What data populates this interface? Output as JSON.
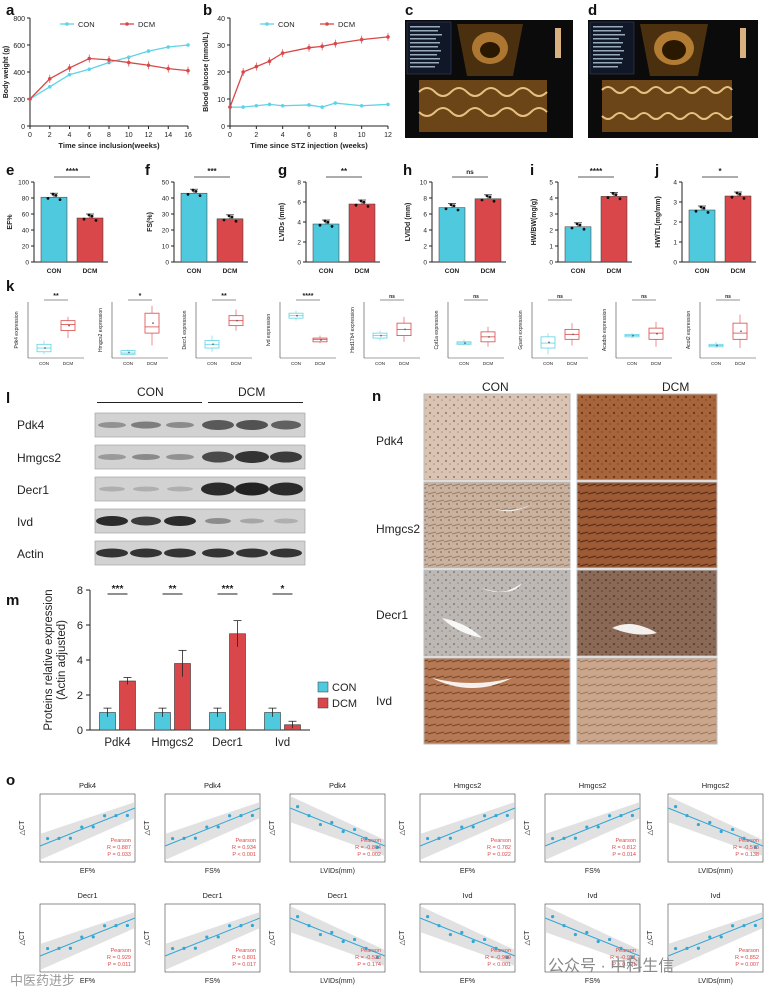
{
  "panel_letters": [
    "a",
    "b",
    "c",
    "d",
    "e",
    "f",
    "g",
    "h",
    "i",
    "j",
    "k",
    "l",
    "m",
    "n",
    "o"
  ],
  "legend": {
    "con": "CON",
    "dcm": "DCM"
  },
  "colors": {
    "con": "#5fd3e6",
    "dcm": "#d94848",
    "con_bar": "#4fc9dd",
    "dcm_bar": "#d9474a",
    "reg": "#33a7d6"
  },
  "chart_data": [
    {
      "id": "a",
      "type": "line",
      "xlabel": "Time since inclusion(weeks)",
      "ylabel": "Body weight  (g)",
      "xlim": [
        0,
        16
      ],
      "ylim": [
        0,
        800
      ],
      "xticks": [
        0,
        2,
        4,
        6,
        8,
        10,
        12,
        14,
        16
      ],
      "yticks": [
        0,
        200,
        400,
        600,
        800
      ],
      "x": [
        0,
        2,
        4,
        6,
        8,
        10,
        12,
        14,
        16
      ],
      "series": [
        {
          "name": "CON",
          "values": [
            200,
            290,
            380,
            420,
            470,
            510,
            555,
            585,
            600
          ]
        },
        {
          "name": "DCM",
          "values": [
            200,
            350,
            430,
            500,
            490,
            470,
            450,
            425,
            410
          ]
        }
      ]
    },
    {
      "id": "b",
      "type": "line",
      "xlabel": "Time since STZ injection  (weeks)",
      "ylabel": "Blood glucose  (mmol/L)",
      "xlim": [
        0,
        12
      ],
      "ylim": [
        0,
        40
      ],
      "xticks": [
        0,
        2,
        4,
        6,
        8,
        10,
        12
      ],
      "yticks": [
        0,
        10,
        20,
        30,
        40
      ],
      "x": [
        0,
        1,
        2,
        3,
        4,
        6,
        7,
        8,
        10,
        12
      ],
      "series": [
        {
          "name": "CON",
          "values": [
            7,
            7,
            7.5,
            8,
            7.5,
            7.8,
            7,
            8.5,
            7.5,
            8
          ]
        },
        {
          "name": "DCM",
          "values": [
            7,
            20,
            22,
            24,
            27,
            29,
            29.5,
            30.5,
            32,
            33
          ]
        }
      ]
    },
    {
      "id": "e",
      "type": "bar",
      "ylabel": "EF%",
      "ylim": [
        0,
        100
      ],
      "yticks": [
        0,
        20,
        40,
        60,
        80,
        100
      ],
      "categories": [
        "CON",
        "DCM"
      ],
      "values": [
        81,
        55
      ],
      "sig": "****"
    },
    {
      "id": "f",
      "type": "bar",
      "ylabel": "FS(%)",
      "ylim": [
        0,
        50
      ],
      "yticks": [
        0,
        10,
        20,
        30,
        40,
        50
      ],
      "categories": [
        "CON",
        "DCM"
      ],
      "values": [
        43,
        27
      ],
      "sig": "***"
    },
    {
      "id": "g",
      "type": "bar",
      "ylabel": "LVIDs  (mm)",
      "ylim": [
        0,
        8
      ],
      "yticks": [
        0,
        2,
        4,
        6,
        8
      ],
      "categories": [
        "CON",
        "DCM"
      ],
      "values": [
        3.8,
        5.8
      ],
      "sig": "**"
    },
    {
      "id": "h",
      "type": "bar",
      "ylabel": "LVIDd  (mm)",
      "ylim": [
        0,
        10
      ],
      "yticks": [
        0,
        2,
        4,
        6,
        8,
        10
      ],
      "categories": [
        "CON",
        "DCM"
      ],
      "values": [
        6.8,
        7.9
      ],
      "sig": "ns"
    },
    {
      "id": "i",
      "type": "bar",
      "ylabel": "HW/BW(mg/g)",
      "ylim": [
        0,
        5
      ],
      "yticks": [
        0,
        1,
        2,
        3,
        4,
        5
      ],
      "categories": [
        "CON",
        "DCM"
      ],
      "values": [
        2.2,
        4.1
      ],
      "sig": "****"
    },
    {
      "id": "j",
      "type": "bar",
      "ylabel": "HW/TL(mg/mm)",
      "ylim": [
        0,
        4
      ],
      "yticks": [
        0,
        1,
        2,
        3,
        4
      ],
      "categories": [
        "CON",
        "DCM"
      ],
      "values": [
        2.6,
        3.3
      ],
      "sig": "*"
    },
    {
      "id": "m",
      "type": "bar",
      "ylabel": "Proteins relative expression\n(Actin adjusted)",
      "ylim": [
        0,
        8
      ],
      "yticks": [
        0,
        2,
        4,
        6,
        8
      ],
      "categories": [
        "Pdk4",
        "Hmgcs2",
        "Decr1",
        "Ivd"
      ],
      "series": [
        {
          "name": "CON",
          "values": [
            1.0,
            1.0,
            1.0,
            1.0
          ]
        },
        {
          "name": "DCM",
          "values": [
            2.8,
            3.8,
            5.5,
            0.3
          ]
        }
      ],
      "sig": [
        "***",
        "**",
        "***",
        "*"
      ],
      "legend": "right"
    }
  ],
  "panel_k": {
    "type": "box",
    "categories": [
      "CON",
      "DCM"
    ],
    "plots": [
      {
        "ylabel": "Pdk4 expression",
        "sig": "**"
      },
      {
        "ylabel": "Hmgcs2 expression",
        "sig": "*"
      },
      {
        "ylabel": "Decr1 expression",
        "sig": "**"
      },
      {
        "ylabel": "Ivd expression",
        "sig": "****"
      },
      {
        "ylabel": "Hsd17b4 expression",
        "sig": "ns"
      },
      {
        "ylabel": "Cpt1a expression",
        "sig": "ns"
      },
      {
        "ylabel": "Gpam expression",
        "sig": "ns"
      },
      {
        "ylabel": "Acadsb expression",
        "sig": "ns"
      },
      {
        "ylabel": "Acot2 expression",
        "sig": "ns"
      }
    ]
  },
  "panel_l": {
    "groups": [
      "CON",
      "DCM"
    ],
    "proteins": [
      "Pdk4",
      "Hmgcs2",
      "Decr1",
      "Ivd",
      "Actin"
    ]
  },
  "panel_n": {
    "groups": [
      "CON",
      "DCM"
    ],
    "proteins": [
      "Pdk4",
      "Hmgcs2",
      "Decr1",
      "Ivd"
    ]
  },
  "panel_o": {
    "method": "Pearson",
    "ylabel": "△CT",
    "plots": [
      {
        "title": "Pdk4",
        "xlabel": "EF%",
        "r": "R = 0.887",
        "p": "P = 0.033"
      },
      {
        "title": "Pdk4",
        "xlabel": "FS%",
        "r": "R = 0.934",
        "p": "P < 0.001"
      },
      {
        "title": "Pdk4",
        "xlabel": "LVIDs(mm)",
        "r": "R = -0.804",
        "p": "P = 0.002"
      },
      {
        "title": "Hmgcs2",
        "xlabel": "EF%",
        "r": "R = 0.782",
        "p": "P = 0.022"
      },
      {
        "title": "Hmgcs2",
        "xlabel": "FS%",
        "r": "R = 0.812",
        "p": "P = 0.014"
      },
      {
        "title": "Hmgcs2",
        "xlabel": "LVIDs(mm)",
        "r": "R = -0.573",
        "p": "P = 0.138"
      },
      {
        "title": "Decr1",
        "xlabel": "EF%",
        "r": "R = 0.929",
        "p": "P = 0.011"
      },
      {
        "title": "Decr1",
        "xlabel": "FS%",
        "r": "R = 0.801",
        "p": "P = 0.017"
      },
      {
        "title": "Decr1",
        "xlabel": "LVIDs(mm)",
        "r": "R = -0.533",
        "p": "P = 0.174"
      },
      {
        "title": "Ivd",
        "xlabel": "EF%",
        "r": "R = -0.969",
        "p": "P < 0.001"
      },
      {
        "title": "Ivd",
        "xlabel": "FS%",
        "r": "R = -0.951",
        "p": "P < 0.001"
      },
      {
        "title": "Ivd",
        "xlabel": "LVIDs(mm)",
        "r": "R = 0.852",
        "p": "P = 0.007"
      }
    ]
  },
  "watermarks": {
    "left": "中医药进步",
    "right": "公众号 · 中科生信"
  }
}
